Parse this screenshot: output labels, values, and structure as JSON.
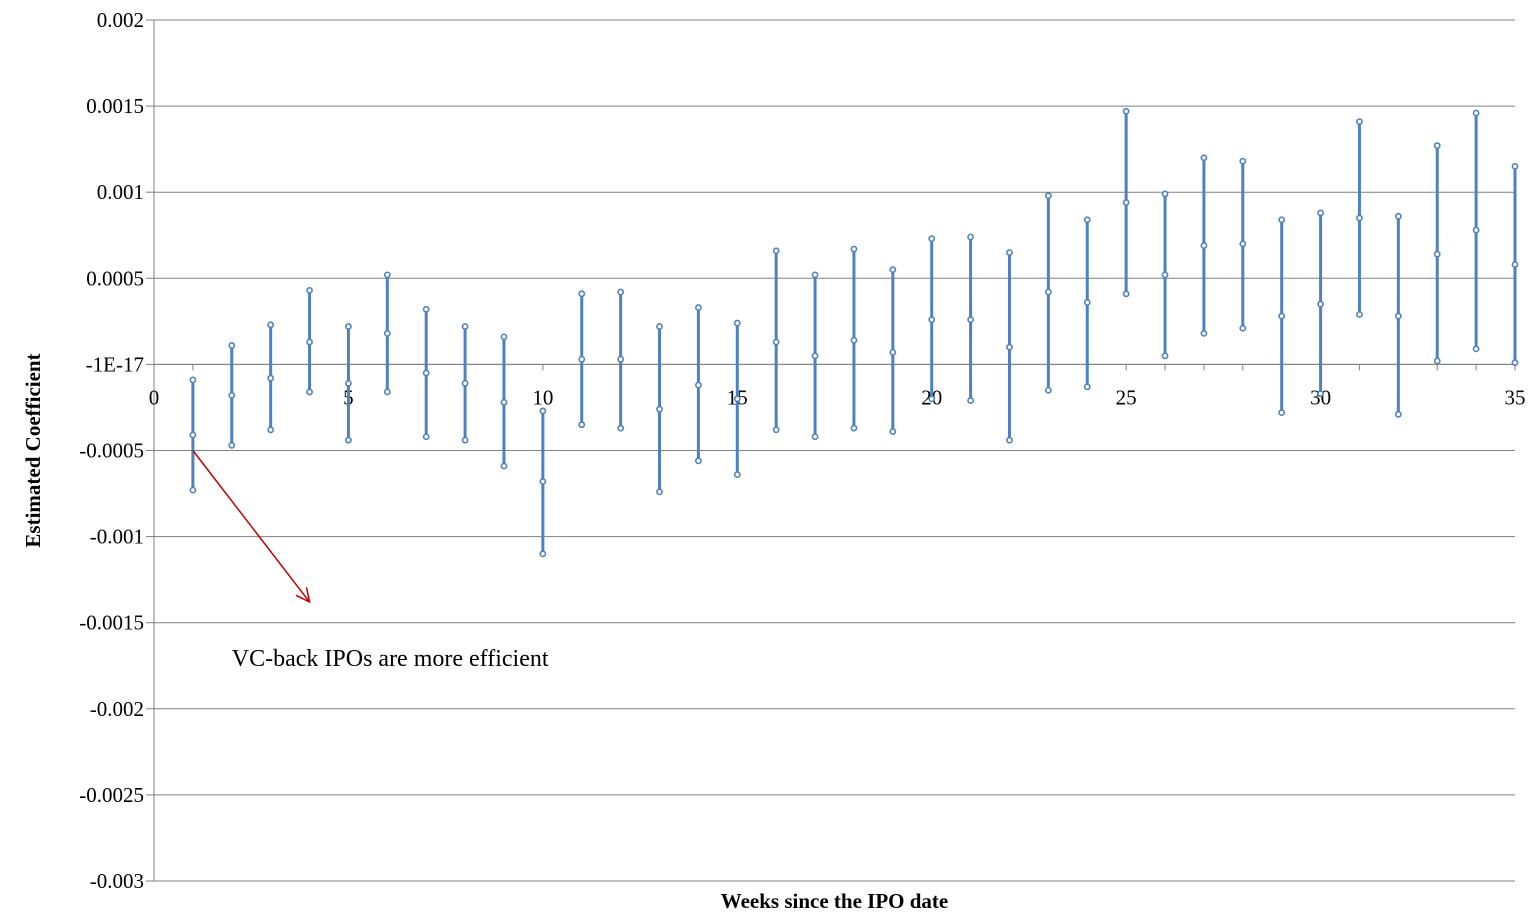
{
  "chart_data": {
    "type": "scatter",
    "xlabel": "Weeks since the IPO date",
    "ylabel": "Estimated Coefficient",
    "xlim": [
      0,
      35
    ],
    "ylim": [
      -0.003,
      0.002
    ],
    "x_ticks": [
      0,
      5,
      10,
      15,
      20,
      25,
      30,
      35
    ],
    "y_ticks": [
      {
        "value": 0.002,
        "label": "0.002"
      },
      {
        "value": 0.0015,
        "label": "0.0015"
      },
      {
        "value": 0.001,
        "label": "0.001"
      },
      {
        "value": 0.0005,
        "label": "0.0005"
      },
      {
        "value": 0,
        "label": "-1E-17"
      },
      {
        "value": -0.0005,
        "label": "-0.0005"
      },
      {
        "value": -0.001,
        "label": "-0.001"
      },
      {
        "value": -0.0015,
        "label": "-0.0015"
      },
      {
        "value": -0.002,
        "label": "-0.002"
      },
      {
        "value": -0.0025,
        "label": "-0.0025"
      },
      {
        "value": -0.003,
        "label": "-0.003"
      }
    ],
    "grid": true,
    "colors": {
      "series": "#4F81BD",
      "marker_fill": "#ffffff",
      "grid": "#808080",
      "arrow": "#C00000"
    },
    "series": [
      {
        "x": [
          1,
          2,
          3,
          4,
          5,
          6,
          7,
          8,
          9,
          10,
          11,
          12,
          13,
          14,
          15,
          16,
          17,
          18,
          19,
          20,
          21,
          22,
          23,
          24,
          25,
          26,
          27,
          28,
          29,
          30,
          31,
          32,
          33,
          34,
          35
        ],
        "upper": [
          -9e-05,
          0.00011,
          0.00023,
          0.00043,
          0.00022,
          0.00052,
          0.00032,
          0.00022,
          0.00016,
          -0.00027,
          0.00041,
          0.00042,
          0.00022,
          0.00033,
          0.00024,
          0.00066,
          0.00052,
          0.00067,
          0.00055,
          0.00073,
          0.00074,
          0.00065,
          0.00098,
          0.00084,
          0.00147,
          0.00099,
          0.0012,
          0.00118,
          0.00084,
          0.00088,
          0.00141,
          0.00086,
          0.00127,
          0.00146,
          0.00115
        ],
        "estimate": [
          -0.00041,
          -0.00018,
          -8e-05,
          0.00013,
          -0.00011,
          0.00018,
          -5e-05,
          -0.00011,
          -0.00022,
          -0.00068,
          3e-05,
          3e-05,
          -0.00026,
          -0.00012,
          -0.0002,
          0.00013,
          5e-05,
          0.00014,
          7e-05,
          0.00026,
          0.00026,
          0.0001,
          0.00042,
          0.00036,
          0.00094,
          0.00052,
          0.00069,
          0.0007,
          0.00028,
          0.00035,
          0.00085,
          0.00028,
          0.00064,
          0.00078,
          0.00058
        ],
        "lower": [
          -0.00073,
          -0.00047,
          -0.00038,
          -0.00016,
          -0.00044,
          -0.00016,
          -0.00042,
          -0.00044,
          -0.00059,
          -0.0011,
          -0.00035,
          -0.00037,
          -0.00074,
          -0.00056,
          -0.00064,
          -0.00038,
          -0.00042,
          -0.00037,
          -0.00039,
          -0.0002,
          -0.00021,
          -0.00044,
          -0.00015,
          -0.00013,
          0.00041,
          5e-05,
          0.00018,
          0.00021,
          -0.00028,
          -0.00017,
          0.00029,
          -0.00029,
          2e-05,
          9e-05,
          1e-05
        ]
      }
    ],
    "annotation": {
      "text": "VC-back IPOs are more efficient",
      "arrow_from": [
        1,
        -0.0005
      ],
      "arrow_to": [
        4,
        -0.00138
      ],
      "text_anchor": [
        2,
        -0.00175
      ]
    }
  }
}
